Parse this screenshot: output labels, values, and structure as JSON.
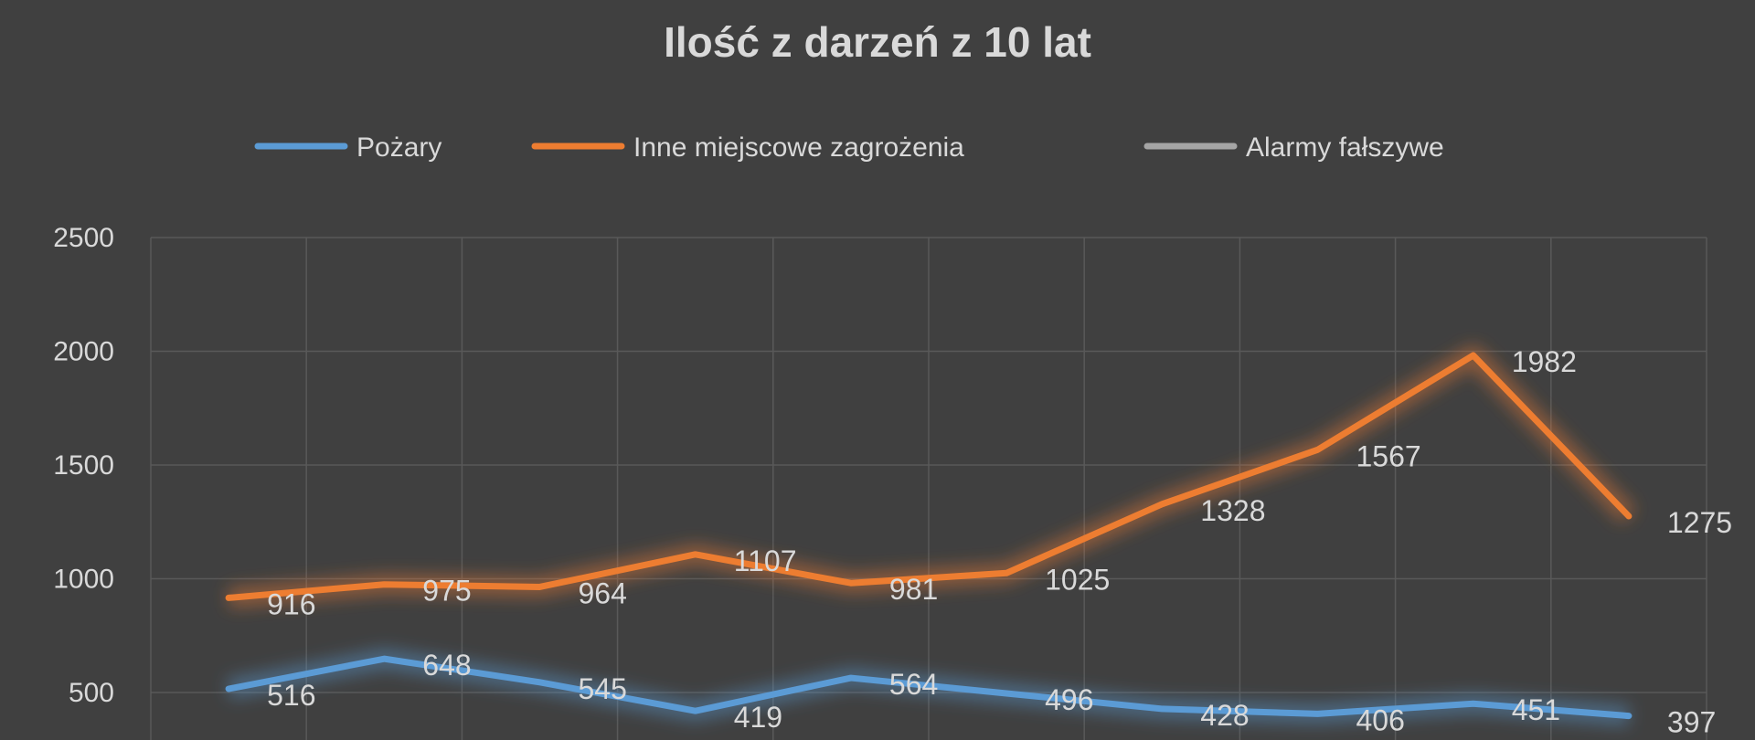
{
  "chart_data": {
    "type": "line",
    "title": "Ilość z darzeń z 10 lat",
    "xlabel": "",
    "ylabel": "",
    "ylim": [
      0,
      2500
    ],
    "yticks": [
      2500,
      2000,
      1500,
      1000,
      500
    ],
    "grid": true,
    "legend_placement": "top",
    "categories_count": 10,
    "series": [
      {
        "name": "Pożary",
        "color": "#5b9bd5",
        "values": [
          516,
          648,
          545,
          419,
          564,
          496,
          428,
          406,
          451,
          397
        ]
      },
      {
        "name": "Inne miejscowe zagrożenia",
        "color": "#ed7d31",
        "values": [
          916,
          975,
          964,
          1107,
          981,
          1025,
          1328,
          1567,
          1982,
          1275
        ]
      },
      {
        "name": "Alarmy fałszywe",
        "color": "#a5a5a5",
        "values": []
      }
    ]
  },
  "colors": {
    "background": "#404040",
    "grid": "#595959",
    "text": "#d9d9d9"
  }
}
